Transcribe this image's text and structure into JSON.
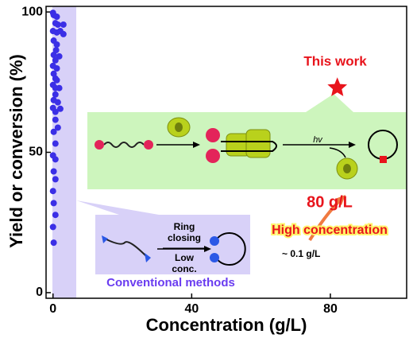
{
  "chart_data": {
    "type": "scatter",
    "x_label": "Concentration (g/L)",
    "y_label": "Yield or conversion (%)",
    "xlim": [
      -2,
      102
    ],
    "ylim": [
      -2,
      102
    ],
    "xticks": [
      0,
      40,
      80
    ],
    "yticks": [
      0,
      50,
      100
    ],
    "series": [
      {
        "name": "Conventional methods",
        "color": "#3b2fe6",
        "marker": "circle",
        "x": [
          0,
          0.2,
          1.1,
          0.7,
          1.4,
          3.0,
          0,
          1.1,
          2.1,
          3.0,
          0.2,
          1.1,
          0.9,
          0.2,
          1.8,
          0.7,
          0,
          1.1,
          0.2,
          0.7,
          1.1,
          0,
          0.7,
          1.8,
          0.7,
          0.2,
          1.4,
          0,
          0.7,
          2.1,
          0.7,
          1.4,
          0.2,
          0.7,
          0,
          0.7,
          0.2,
          0.7,
          0,
          0.2,
          0.7,
          0,
          0.2
        ],
        "y": [
          99.7,
          98.9,
          98.3,
          96,
          95.5,
          95.5,
          93.2,
          92.7,
          93.2,
          92.1,
          89.8,
          88.4,
          86.4,
          84.7,
          84.2,
          82.8,
          80.8,
          79.9,
          78,
          76.3,
          75.7,
          74,
          72.9,
          72.9,
          70.6,
          68.6,
          67.8,
          65.8,
          64.4,
          65.5,
          61.6,
          58.8,
          57.3,
          53.1,
          48.9,
          47.5,
          43.2,
          40.4,
          36.2,
          31.9,
          27.7,
          23.4,
          17.8
        ]
      },
      {
        "name": "This work",
        "color": "#e8141c",
        "marker": "star",
        "x": [
          82
        ],
        "y": [
          73
        ]
      }
    ],
    "annotations": {
      "concentration": "80 g/L",
      "high": "High concentration",
      "ring": [
        "Ring",
        "closing"
      ],
      "low": [
        "Low",
        "conc."
      ],
      "conventional_conc": "~ 0.1 g/L",
      "light": "hv"
    }
  }
}
